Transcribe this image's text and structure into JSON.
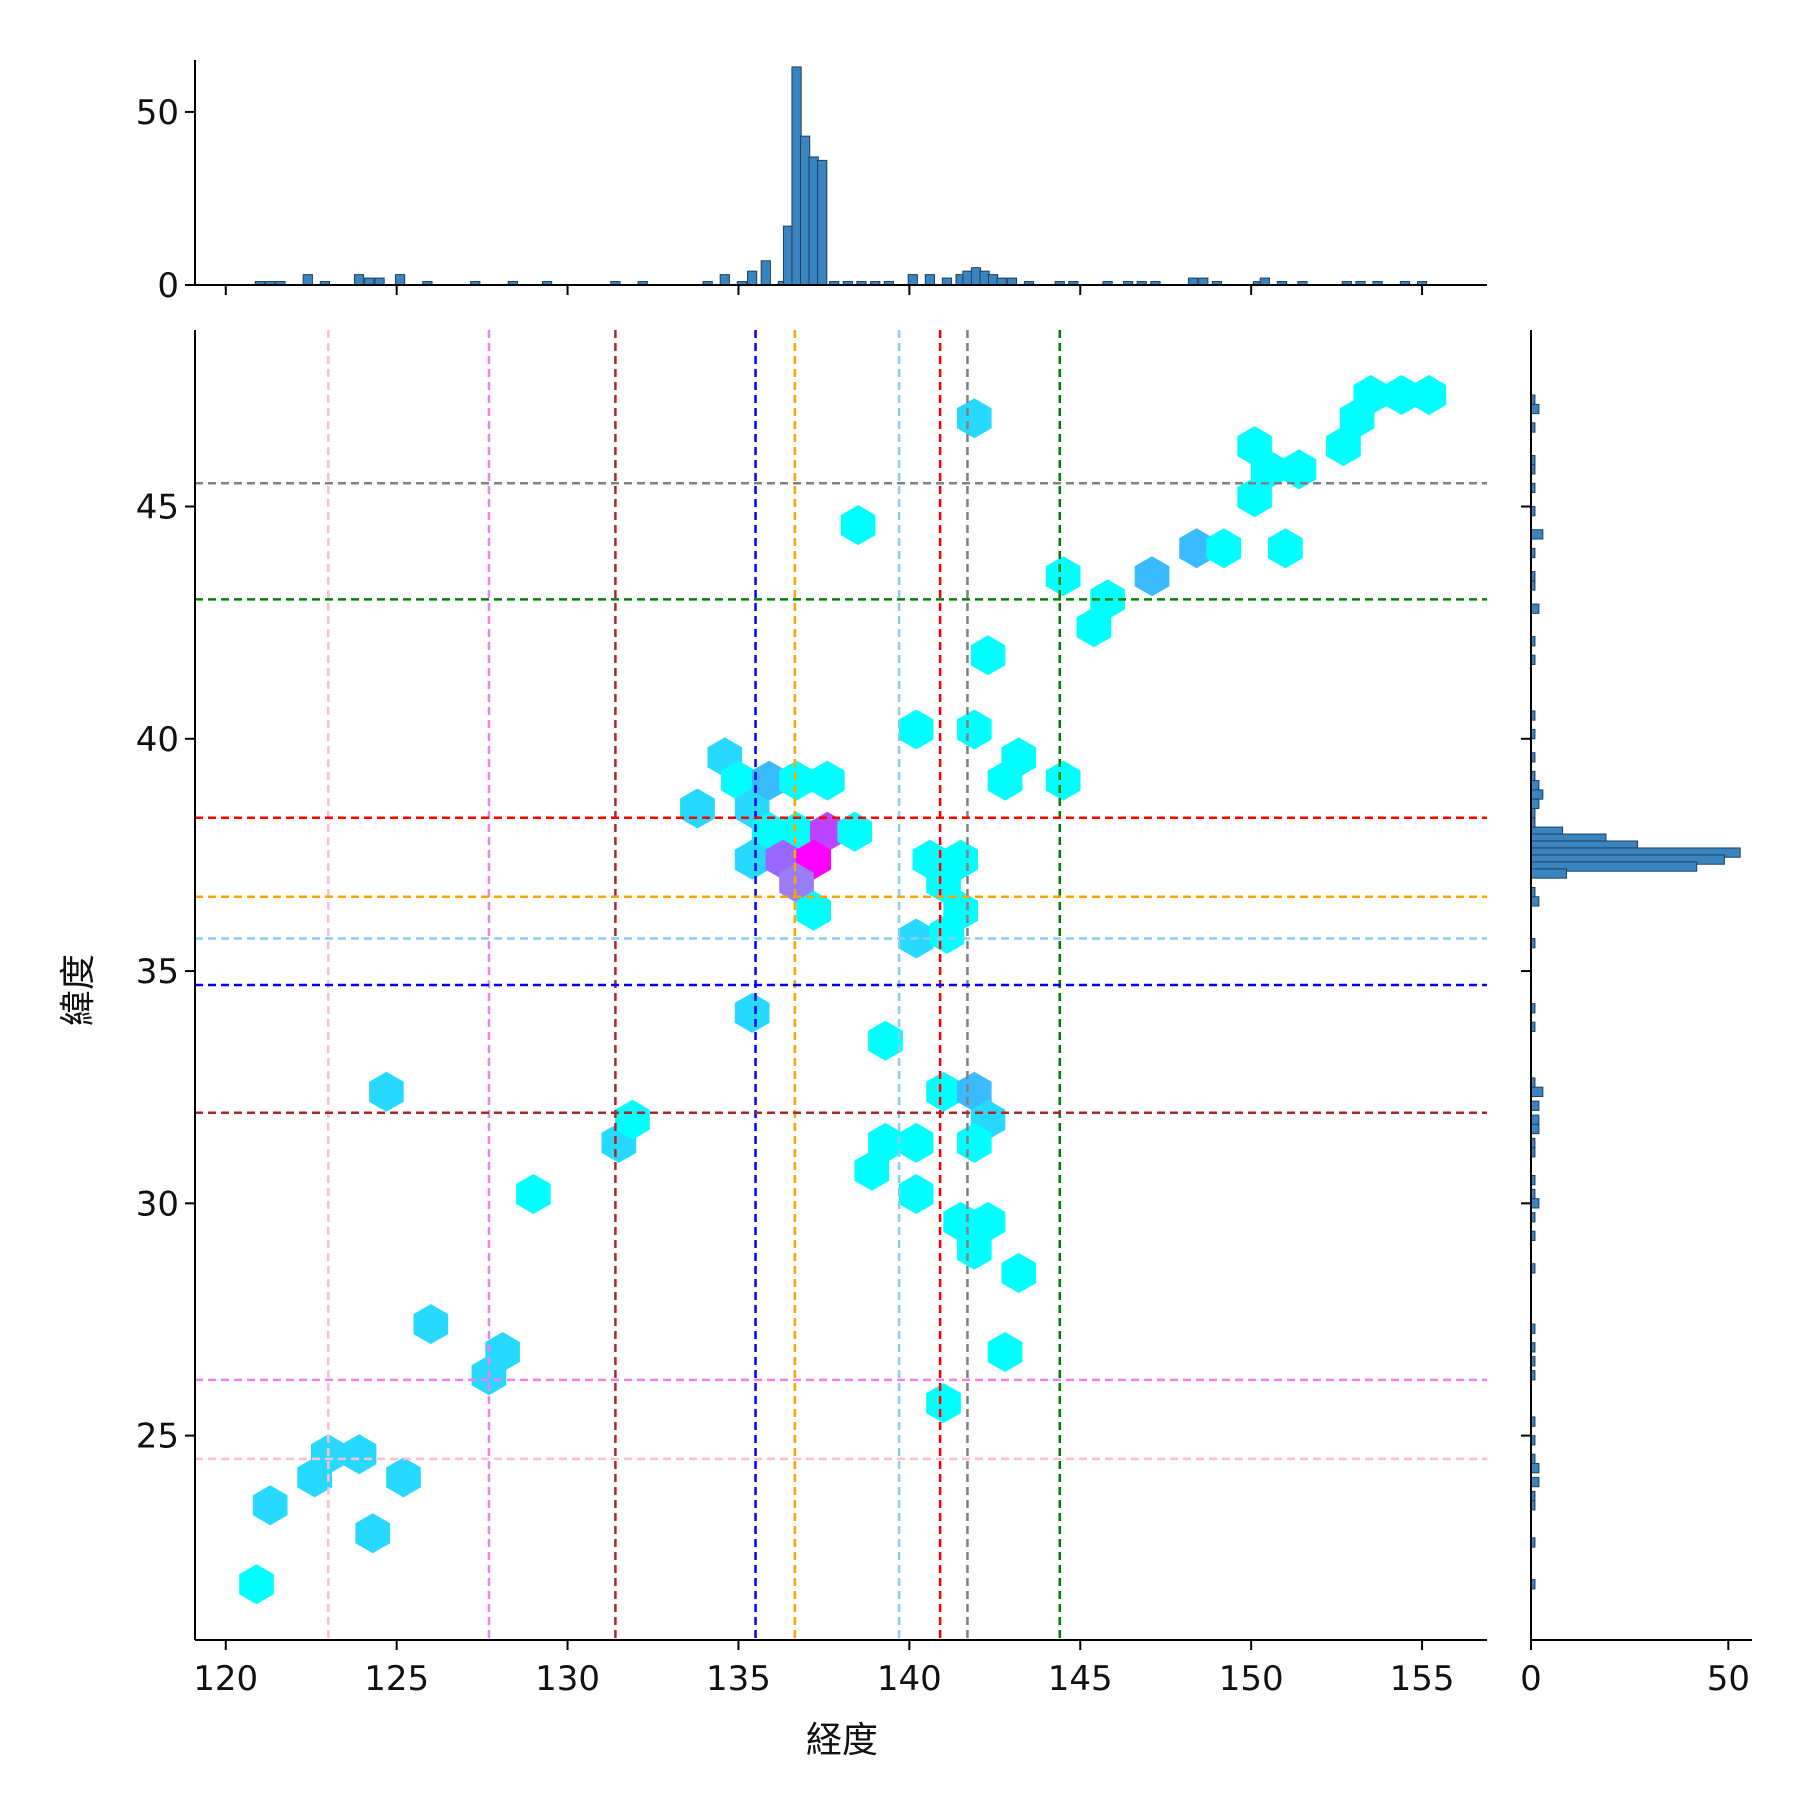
{
  "chart_data": {
    "type": "hexbin",
    "xlabel": "経度",
    "ylabel": "緯度",
    "xlim": [
      119.1,
      156.9
    ],
    "ylim": [
      20.6,
      48.8
    ],
    "xticks": [
      120,
      125,
      130,
      135,
      140,
      145,
      150,
      155
    ],
    "yticks": [
      25,
      30,
      35,
      40,
      45
    ],
    "top_hist_ticks": [
      0,
      50
    ],
    "top_hist_ylim": [
      0,
      65
    ],
    "right_hist_ticks": [
      0,
      50
    ],
    "right_hist_xlim": [
      0,
      56
    ],
    "colors": {
      "hist": "#3a85c0",
      "hist_edge": "#1f3f5c",
      "axis": "#000000"
    },
    "vlines": [
      {
        "x": 123.0,
        "color": "#ffc0cb"
      },
      {
        "x": 127.7,
        "color": "#ee82ee"
      },
      {
        "x": 131.4,
        "color": "#a52a2a"
      },
      {
        "x": 135.5,
        "color": "#0000ff"
      },
      {
        "x": 136.65,
        "color": "#ffa500"
      },
      {
        "x": 139.7,
        "color": "#87ceeb"
      },
      {
        "x": 140.9,
        "color": "#ff0000"
      },
      {
        "x": 141.7,
        "color": "#808080"
      },
      {
        "x": 144.4,
        "color": "#008000"
      }
    ],
    "hlines": [
      {
        "y": 24.5,
        "color": "#ffc0cb"
      },
      {
        "y": 26.2,
        "color": "#ee82ee"
      },
      {
        "y": 31.95,
        "color": "#a52a2a"
      },
      {
        "y": 34.7,
        "color": "#0000ff"
      },
      {
        "y": 35.7,
        "color": "#87ceeb"
      },
      {
        "y": 36.6,
        "color": "#ffa500"
      },
      {
        "y": 38.3,
        "color": "#ff0000"
      },
      {
        "y": 43.0,
        "color": "#008000"
      },
      {
        "y": 45.5,
        "color": "#808080"
      }
    ],
    "hexbins": [
      {
        "x": 120.9,
        "y": 21.8,
        "color": "#00ffff"
      },
      {
        "x": 121.3,
        "y": 23.5,
        "color": "#27d8ff"
      },
      {
        "x": 122.6,
        "y": 24.1,
        "color": "#27d8ff"
      },
      {
        "x": 123.0,
        "y": 24.6,
        "color": "#27d8ff"
      },
      {
        "x": 123.9,
        "y": 24.6,
        "color": "#27d8ff"
      },
      {
        "x": 124.3,
        "y": 22.9,
        "color": "#27d8ff"
      },
      {
        "x": 125.2,
        "y": 24.1,
        "color": "#27d8ff"
      },
      {
        "x": 124.7,
        "y": 32.4,
        "color": "#27d8ff"
      },
      {
        "x": 126.0,
        "y": 27.4,
        "color": "#27d8ff"
      },
      {
        "x": 127.7,
        "y": 26.3,
        "color": "#27d8ff"
      },
      {
        "x": 128.1,
        "y": 26.8,
        "color": "#27d8ff"
      },
      {
        "x": 129.0,
        "y": 30.2,
        "color": "#00ffff"
      },
      {
        "x": 131.5,
        "y": 31.3,
        "color": "#27d8ff"
      },
      {
        "x": 131.9,
        "y": 31.8,
        "color": "#00ffff"
      },
      {
        "x": 133.8,
        "y": 38.5,
        "color": "#27d8ff"
      },
      {
        "x": 134.6,
        "y": 39.6,
        "color": "#27d8ff"
      },
      {
        "x": 135.0,
        "y": 39.1,
        "color": "#00ffff"
      },
      {
        "x": 135.4,
        "y": 38.5,
        "color": "#27d8ff"
      },
      {
        "x": 135.9,
        "y": 39.1,
        "color": "#3bbbff"
      },
      {
        "x": 135.9,
        "y": 38.0,
        "color": "#00ffff"
      },
      {
        "x": 135.4,
        "y": 37.4,
        "color": "#27d8ff"
      },
      {
        "x": 136.7,
        "y": 39.1,
        "color": "#00ffff"
      },
      {
        "x": 137.6,
        "y": 39.1,
        "color": "#00ffff"
      },
      {
        "x": 136.7,
        "y": 38.0,
        "color": "#00ffff"
      },
      {
        "x": 137.6,
        "y": 38.0,
        "color": "#bb44ff"
      },
      {
        "x": 138.4,
        "y": 38.0,
        "color": "#00ffff"
      },
      {
        "x": 136.3,
        "y": 37.4,
        "color": "#9966ff"
      },
      {
        "x": 137.2,
        "y": 37.4,
        "color": "#ff00ff"
      },
      {
        "x": 136.7,
        "y": 36.9,
        "color": "#9b7cf7"
      },
      {
        "x": 137.2,
        "y": 36.3,
        "color": "#00ffff"
      },
      {
        "x": 138.5,
        "y": 44.6,
        "color": "#00ffff"
      },
      {
        "x": 135.4,
        "y": 34.1,
        "color": "#27d8ff"
      },
      {
        "x": 139.3,
        "y": 33.5,
        "color": "#00ffff"
      },
      {
        "x": 138.9,
        "y": 30.7,
        "color": "#00ffff"
      },
      {
        "x": 139.3,
        "y": 31.3,
        "color": "#00ffff"
      },
      {
        "x": 140.2,
        "y": 31.3,
        "color": "#00ffff"
      },
      {
        "x": 140.2,
        "y": 30.2,
        "color": "#00ffff"
      },
      {
        "x": 140.2,
        "y": 35.7,
        "color": "#27d8ff"
      },
      {
        "x": 140.2,
        "y": 40.2,
        "color": "#00ffff"
      },
      {
        "x": 140.6,
        "y": 37.4,
        "color": "#00ffff"
      },
      {
        "x": 141.0,
        "y": 36.9,
        "color": "#00ffff"
      },
      {
        "x": 141.5,
        "y": 37.4,
        "color": "#00ffff"
      },
      {
        "x": 141.1,
        "y": 35.8,
        "color": "#00ffff"
      },
      {
        "x": 141.5,
        "y": 36.3,
        "color": "#00ffff"
      },
      {
        "x": 141.0,
        "y": 32.4,
        "color": "#00ffff"
      },
      {
        "x": 141.9,
        "y": 32.4,
        "color": "#3bbbff"
      },
      {
        "x": 142.3,
        "y": 31.8,
        "color": "#27d8ff"
      },
      {
        "x": 141.9,
        "y": 31.3,
        "color": "#00ffff"
      },
      {
        "x": 141.5,
        "y": 29.6,
        "color": "#00ffff"
      },
      {
        "x": 142.3,
        "y": 29.6,
        "color": "#00ffff"
      },
      {
        "x": 141.9,
        "y": 29.0,
        "color": "#00ffff"
      },
      {
        "x": 143.2,
        "y": 28.5,
        "color": "#00ffff"
      },
      {
        "x": 142.8,
        "y": 26.8,
        "color": "#00ffff"
      },
      {
        "x": 141.0,
        "y": 25.7,
        "color": "#00ffff"
      },
      {
        "x": 141.9,
        "y": 40.2,
        "color": "#00ffff"
      },
      {
        "x": 143.2,
        "y": 39.6,
        "color": "#00ffff"
      },
      {
        "x": 142.8,
        "y": 39.1,
        "color": "#00ffff"
      },
      {
        "x": 144.5,
        "y": 39.1,
        "color": "#00ffff"
      },
      {
        "x": 142.3,
        "y": 41.8,
        "color": "#00ffff"
      },
      {
        "x": 141.9,
        "y": 46.9,
        "color": "#27d8ff"
      },
      {
        "x": 144.5,
        "y": 43.5,
        "color": "#00ffff"
      },
      {
        "x": 145.4,
        "y": 42.4,
        "color": "#00ffff"
      },
      {
        "x": 145.8,
        "y": 43.0,
        "color": "#00ffff"
      },
      {
        "x": 147.1,
        "y": 43.5,
        "color": "#3bbbff"
      },
      {
        "x": 148.4,
        "y": 44.1,
        "color": "#3bbbff"
      },
      {
        "x": 149.2,
        "y": 44.1,
        "color": "#00ffff"
      },
      {
        "x": 150.1,
        "y": 45.2,
        "color": "#00ffff"
      },
      {
        "x": 150.1,
        "y": 46.3,
        "color": "#00ffff"
      },
      {
        "x": 150.5,
        "y": 45.8,
        "color": "#00ffff"
      },
      {
        "x": 151.4,
        "y": 45.8,
        "color": "#00ffff"
      },
      {
        "x": 151.0,
        "y": 44.1,
        "color": "#00ffff"
      },
      {
        "x": 152.7,
        "y": 46.3,
        "color": "#00ffff"
      },
      {
        "x": 153.1,
        "y": 46.9,
        "color": "#00ffff"
      },
      {
        "x": 153.5,
        "y": 47.4,
        "color": "#00ffff"
      },
      {
        "x": 154.4,
        "y": 47.4,
        "color": "#00ffff"
      },
      {
        "x": 155.2,
        "y": 47.4,
        "color": "#00ffff"
      }
    ],
    "top_histogram": {
      "bin_width": 0.27,
      "bins": [
        [
          121.0,
          1
        ],
        [
          121.3,
          1
        ],
        [
          121.6,
          1
        ],
        [
          122.4,
          3
        ],
        [
          122.9,
          1
        ],
        [
          123.9,
          3
        ],
        [
          124.2,
          2
        ],
        [
          124.5,
          2
        ],
        [
          125.1,
          3
        ],
        [
          125.9,
          1
        ],
        [
          127.3,
          1
        ],
        [
          128.4,
          1
        ],
        [
          129.4,
          1
        ],
        [
          131.4,
          1
        ],
        [
          132.2,
          1
        ],
        [
          134.1,
          1
        ],
        [
          134.6,
          3
        ],
        [
          135.1,
          1
        ],
        [
          135.4,
          4
        ],
        [
          135.8,
          7
        ],
        [
          136.3,
          1
        ],
        [
          136.6,
          1
        ],
        [
          136.45,
          17
        ],
        [
          136.7,
          63
        ],
        [
          136.95,
          43
        ],
        [
          137.2,
          37
        ],
        [
          137.45,
          36
        ],
        [
          137.8,
          1
        ],
        [
          138.2,
          1
        ],
        [
          138.6,
          1
        ],
        [
          139.0,
          1
        ],
        [
          139.4,
          1
        ],
        [
          140.1,
          3
        ],
        [
          140.6,
          3
        ],
        [
          141.1,
          2
        ],
        [
          141.5,
          3
        ],
        [
          141.7,
          4
        ],
        [
          141.95,
          5
        ],
        [
          142.2,
          4
        ],
        [
          142.45,
          3
        ],
        [
          142.7,
          2
        ],
        [
          143.0,
          2
        ],
        [
          143.5,
          1
        ],
        [
          144.4,
          1
        ],
        [
          144.8,
          1
        ],
        [
          145.8,
          1
        ],
        [
          146.4,
          1
        ],
        [
          146.8,
          1
        ],
        [
          147.2,
          1
        ],
        [
          148.3,
          2
        ],
        [
          148.6,
          2
        ],
        [
          149.0,
          1
        ],
        [
          150.2,
          1
        ],
        [
          150.4,
          2
        ],
        [
          150.9,
          1
        ],
        [
          151.5,
          1
        ],
        [
          152.8,
          1
        ],
        [
          153.2,
          1
        ],
        [
          153.7,
          1
        ],
        [
          154.5,
          1
        ],
        [
          155.0,
          1
        ]
      ]
    },
    "right_histogram": {
      "bin_width": 0.2,
      "bins": [
        [
          47.3,
          1
        ],
        [
          47.1,
          2
        ],
        [
          46.7,
          1
        ],
        [
          46.0,
          1
        ],
        [
          45.8,
          1
        ],
        [
          45.4,
          1
        ],
        [
          44.9,
          1
        ],
        [
          44.4,
          3
        ],
        [
          44.0,
          1
        ],
        [
          43.5,
          1
        ],
        [
          43.3,
          1
        ],
        [
          42.8,
          2
        ],
        [
          42.1,
          1
        ],
        [
          41.7,
          1
        ],
        [
          40.5,
          1
        ],
        [
          40.1,
          1
        ],
        [
          39.6,
          1
        ],
        [
          39.2,
          1
        ],
        [
          39.0,
          2
        ],
        [
          38.8,
          3
        ],
        [
          38.6,
          2
        ],
        [
          38.4,
          1
        ],
        [
          38.2,
          1
        ],
        [
          38.0,
          8
        ],
        [
          37.85,
          19
        ],
        [
          37.7,
          27
        ],
        [
          37.55,
          53
        ],
        [
          37.4,
          49
        ],
        [
          37.25,
          42
        ],
        [
          37.1,
          9
        ],
        [
          36.7,
          1
        ],
        [
          36.5,
          2
        ],
        [
          35.6,
          1
        ],
        [
          34.2,
          1
        ],
        [
          33.8,
          1
        ],
        [
          32.6,
          1
        ],
        [
          32.4,
          3
        ],
        [
          32.1,
          2
        ],
        [
          31.8,
          2
        ],
        [
          31.6,
          2
        ],
        [
          31.3,
          1
        ],
        [
          31.1,
          1
        ],
        [
          30.5,
          1
        ],
        [
          30.2,
          1
        ],
        [
          30.0,
          2
        ],
        [
          29.7,
          1
        ],
        [
          29.3,
          1
        ],
        [
          28.6,
          1
        ],
        [
          27.3,
          1
        ],
        [
          26.9,
          1
        ],
        [
          26.6,
          1
        ],
        [
          26.3,
          1
        ],
        [
          25.3,
          1
        ],
        [
          24.9,
          1
        ],
        [
          24.5,
          1
        ],
        [
          24.3,
          2
        ],
        [
          24.0,
          2
        ],
        [
          23.7,
          1
        ],
        [
          23.5,
          1
        ],
        [
          22.7,
          1
        ],
        [
          21.8,
          1
        ]
      ]
    }
  }
}
